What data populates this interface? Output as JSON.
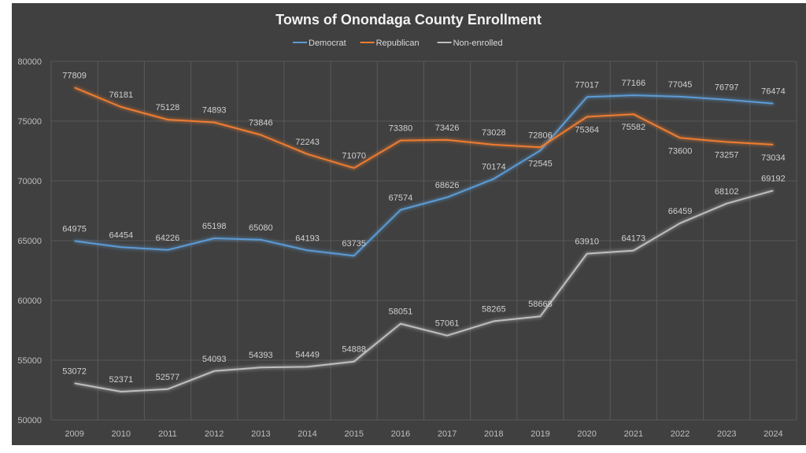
{
  "chart_data": {
    "type": "line",
    "title": "Towns of Onondaga County Enrollment",
    "xlabel": "",
    "ylabel": "",
    "ylim": [
      50000,
      80000
    ],
    "yticks": [
      50000,
      55000,
      60000,
      65000,
      70000,
      75000,
      80000
    ],
    "grid": true,
    "legend_position": "top",
    "categories": [
      "2009",
      "2010",
      "2011",
      "2012",
      "2013",
      "2014",
      "2015",
      "2016",
      "2017",
      "2018",
      "2019",
      "2020",
      "2021",
      "2022",
      "2023",
      "2024"
    ],
    "series": [
      {
        "name": "Democrat",
        "color": "#5b9bd5",
        "values": [
          64975,
          64454,
          64226,
          65198,
          65080,
          64193,
          63735,
          67574,
          68626,
          70174,
          72545,
          77017,
          77166,
          77045,
          76797,
          76474
        ]
      },
      {
        "name": "Republican",
        "color": "#ed7d31",
        "values": [
          77809,
          76181,
          75128,
          74893,
          73846,
          72243,
          71070,
          73380,
          73426,
          73028,
          72806,
          75364,
          75582,
          73600,
          73257,
          73034
        ]
      },
      {
        "name": "Non-enrolled",
        "color": "#bfbfbf",
        "values": [
          53072,
          52371,
          52577,
          54093,
          54393,
          54449,
          54888,
          58051,
          57061,
          58265,
          58668,
          63910,
          64173,
          66459,
          68102,
          69192
        ]
      }
    ]
  }
}
